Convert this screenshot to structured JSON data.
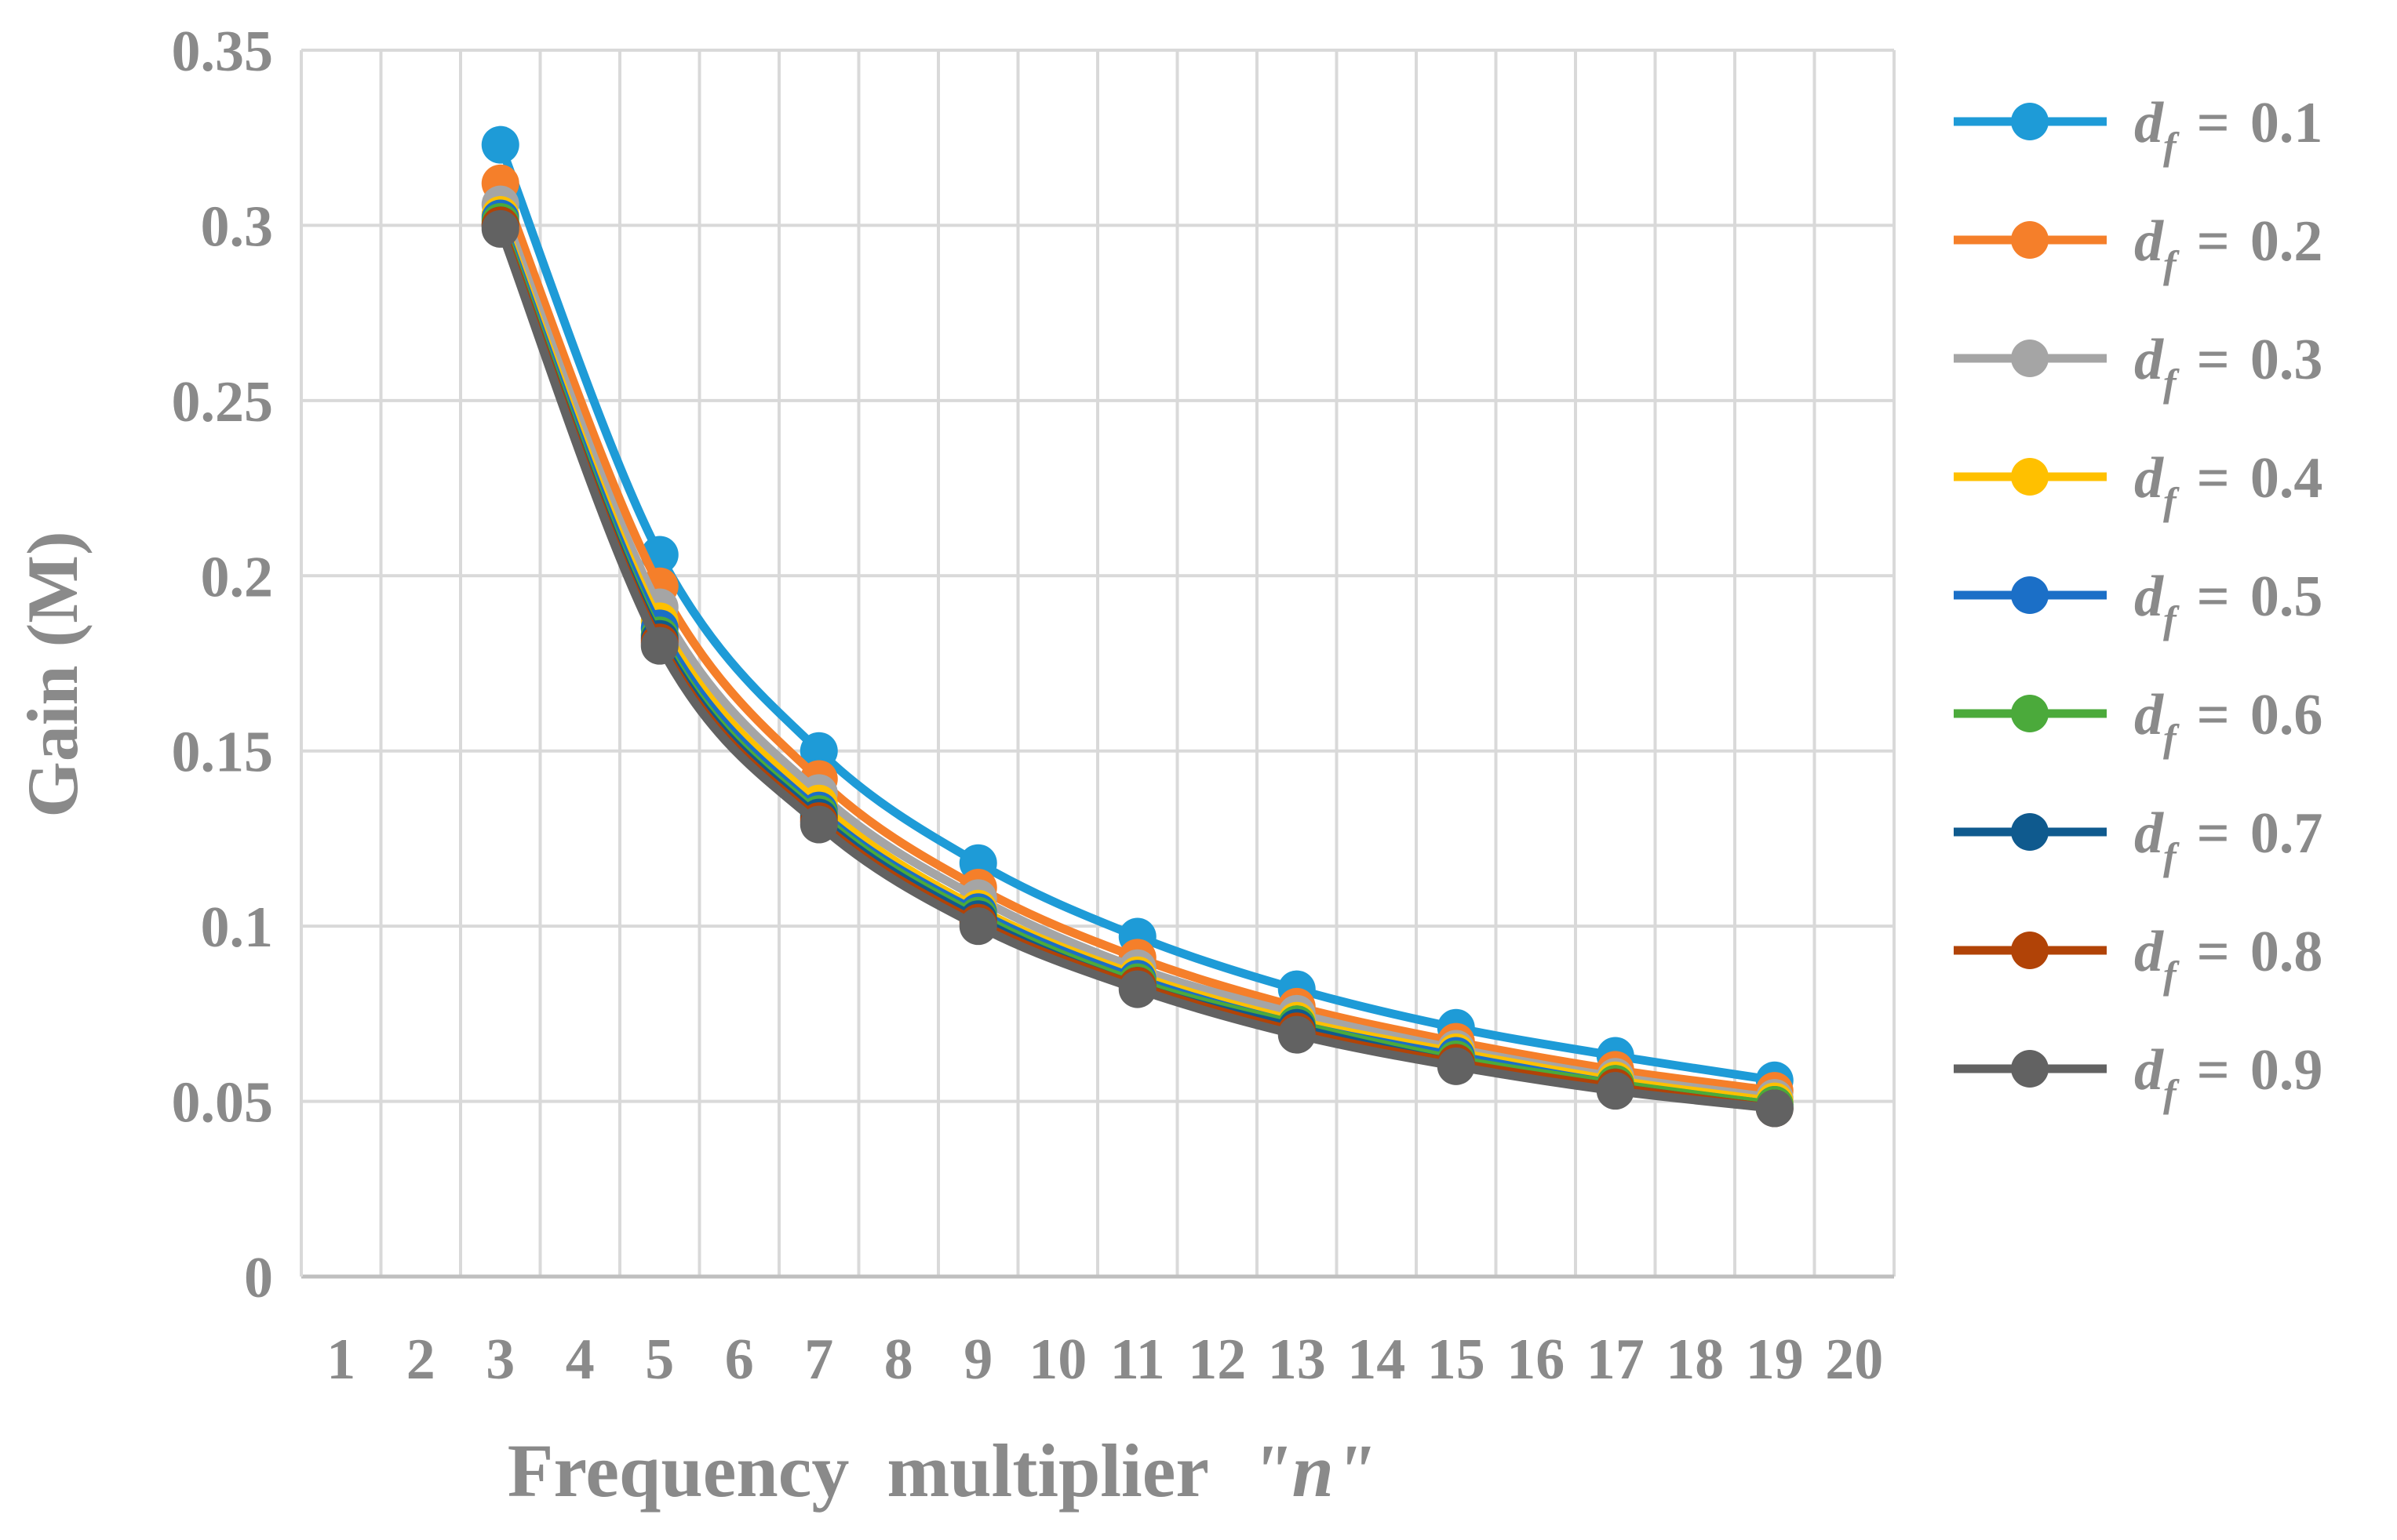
{
  "chart_data": {
    "type": "line",
    "title": "",
    "xlabel_main": "Frequency  multiplier",
    "xlabel_var": "\"n\"",
    "ylabel": "Gain (M)",
    "xlim": [
      1,
      20
    ],
    "ylim": [
      0,
      0.35
    ],
    "x_ticks": [
      "1",
      "2",
      "3",
      "4",
      "5",
      "6",
      "7",
      "8",
      "9",
      "10",
      "11",
      "12",
      "13",
      "14",
      "15",
      "16",
      "17",
      "18",
      "19",
      "20"
    ],
    "y_ticks": [
      "0",
      "0.05",
      "0.1",
      "0.15",
      "0.2",
      "0.25",
      "0.3",
      "0.35"
    ],
    "grid": true,
    "legend_position": "right",
    "legend_prefix": "d",
    "legend_subscript": "f",
    "legend_equals": "=",
    "x": [
      3,
      5,
      7,
      9,
      11,
      13,
      15,
      17,
      19
    ],
    "series": [
      {
        "name": "0.1",
        "color": "#1E9BD7",
        "values": [
          0.323,
          0.206,
          0.15,
          0.118,
          0.097,
          0.082,
          0.071,
          0.063,
          0.056
        ]
      },
      {
        "name": "0.2",
        "color": "#F57F2A",
        "values": [
          0.312,
          0.197,
          0.142,
          0.111,
          0.091,
          0.077,
          0.067,
          0.059,
          0.053
        ]
      },
      {
        "name": "0.3",
        "color": "#A5A5A5",
        "values": [
          0.306,
          0.191,
          0.138,
          0.108,
          0.088,
          0.075,
          0.065,
          0.057,
          0.051
        ]
      },
      {
        "name": "0.4",
        "color": "#FFC000",
        "values": [
          0.303,
          0.187,
          0.135,
          0.105,
          0.086,
          0.073,
          0.064,
          0.056,
          0.05
        ]
      },
      {
        "name": "0.5",
        "color": "#1B6FC7",
        "values": [
          0.302,
          0.185,
          0.133,
          0.104,
          0.085,
          0.072,
          0.063,
          0.055,
          0.049
        ]
      },
      {
        "name": "0.6",
        "color": "#4BAA3B",
        "values": [
          0.301,
          0.183,
          0.132,
          0.103,
          0.084,
          0.072,
          0.062,
          0.055,
          0.049
        ]
      },
      {
        "name": "0.7",
        "color": "#0F5A8E",
        "values": [
          0.3,
          0.182,
          0.131,
          0.102,
          0.083,
          0.071,
          0.061,
          0.054,
          0.048
        ]
      },
      {
        "name": "0.8",
        "color": "#B14307",
        "values": [
          0.3,
          0.181,
          0.13,
          0.101,
          0.083,
          0.07,
          0.061,
          0.054,
          0.048
        ]
      },
      {
        "name": "0.9",
        "color": "#626262",
        "values": [
          0.299,
          0.18,
          0.129,
          0.1,
          0.082,
          0.069,
          0.06,
          0.053,
          0.048
        ]
      }
    ]
  }
}
